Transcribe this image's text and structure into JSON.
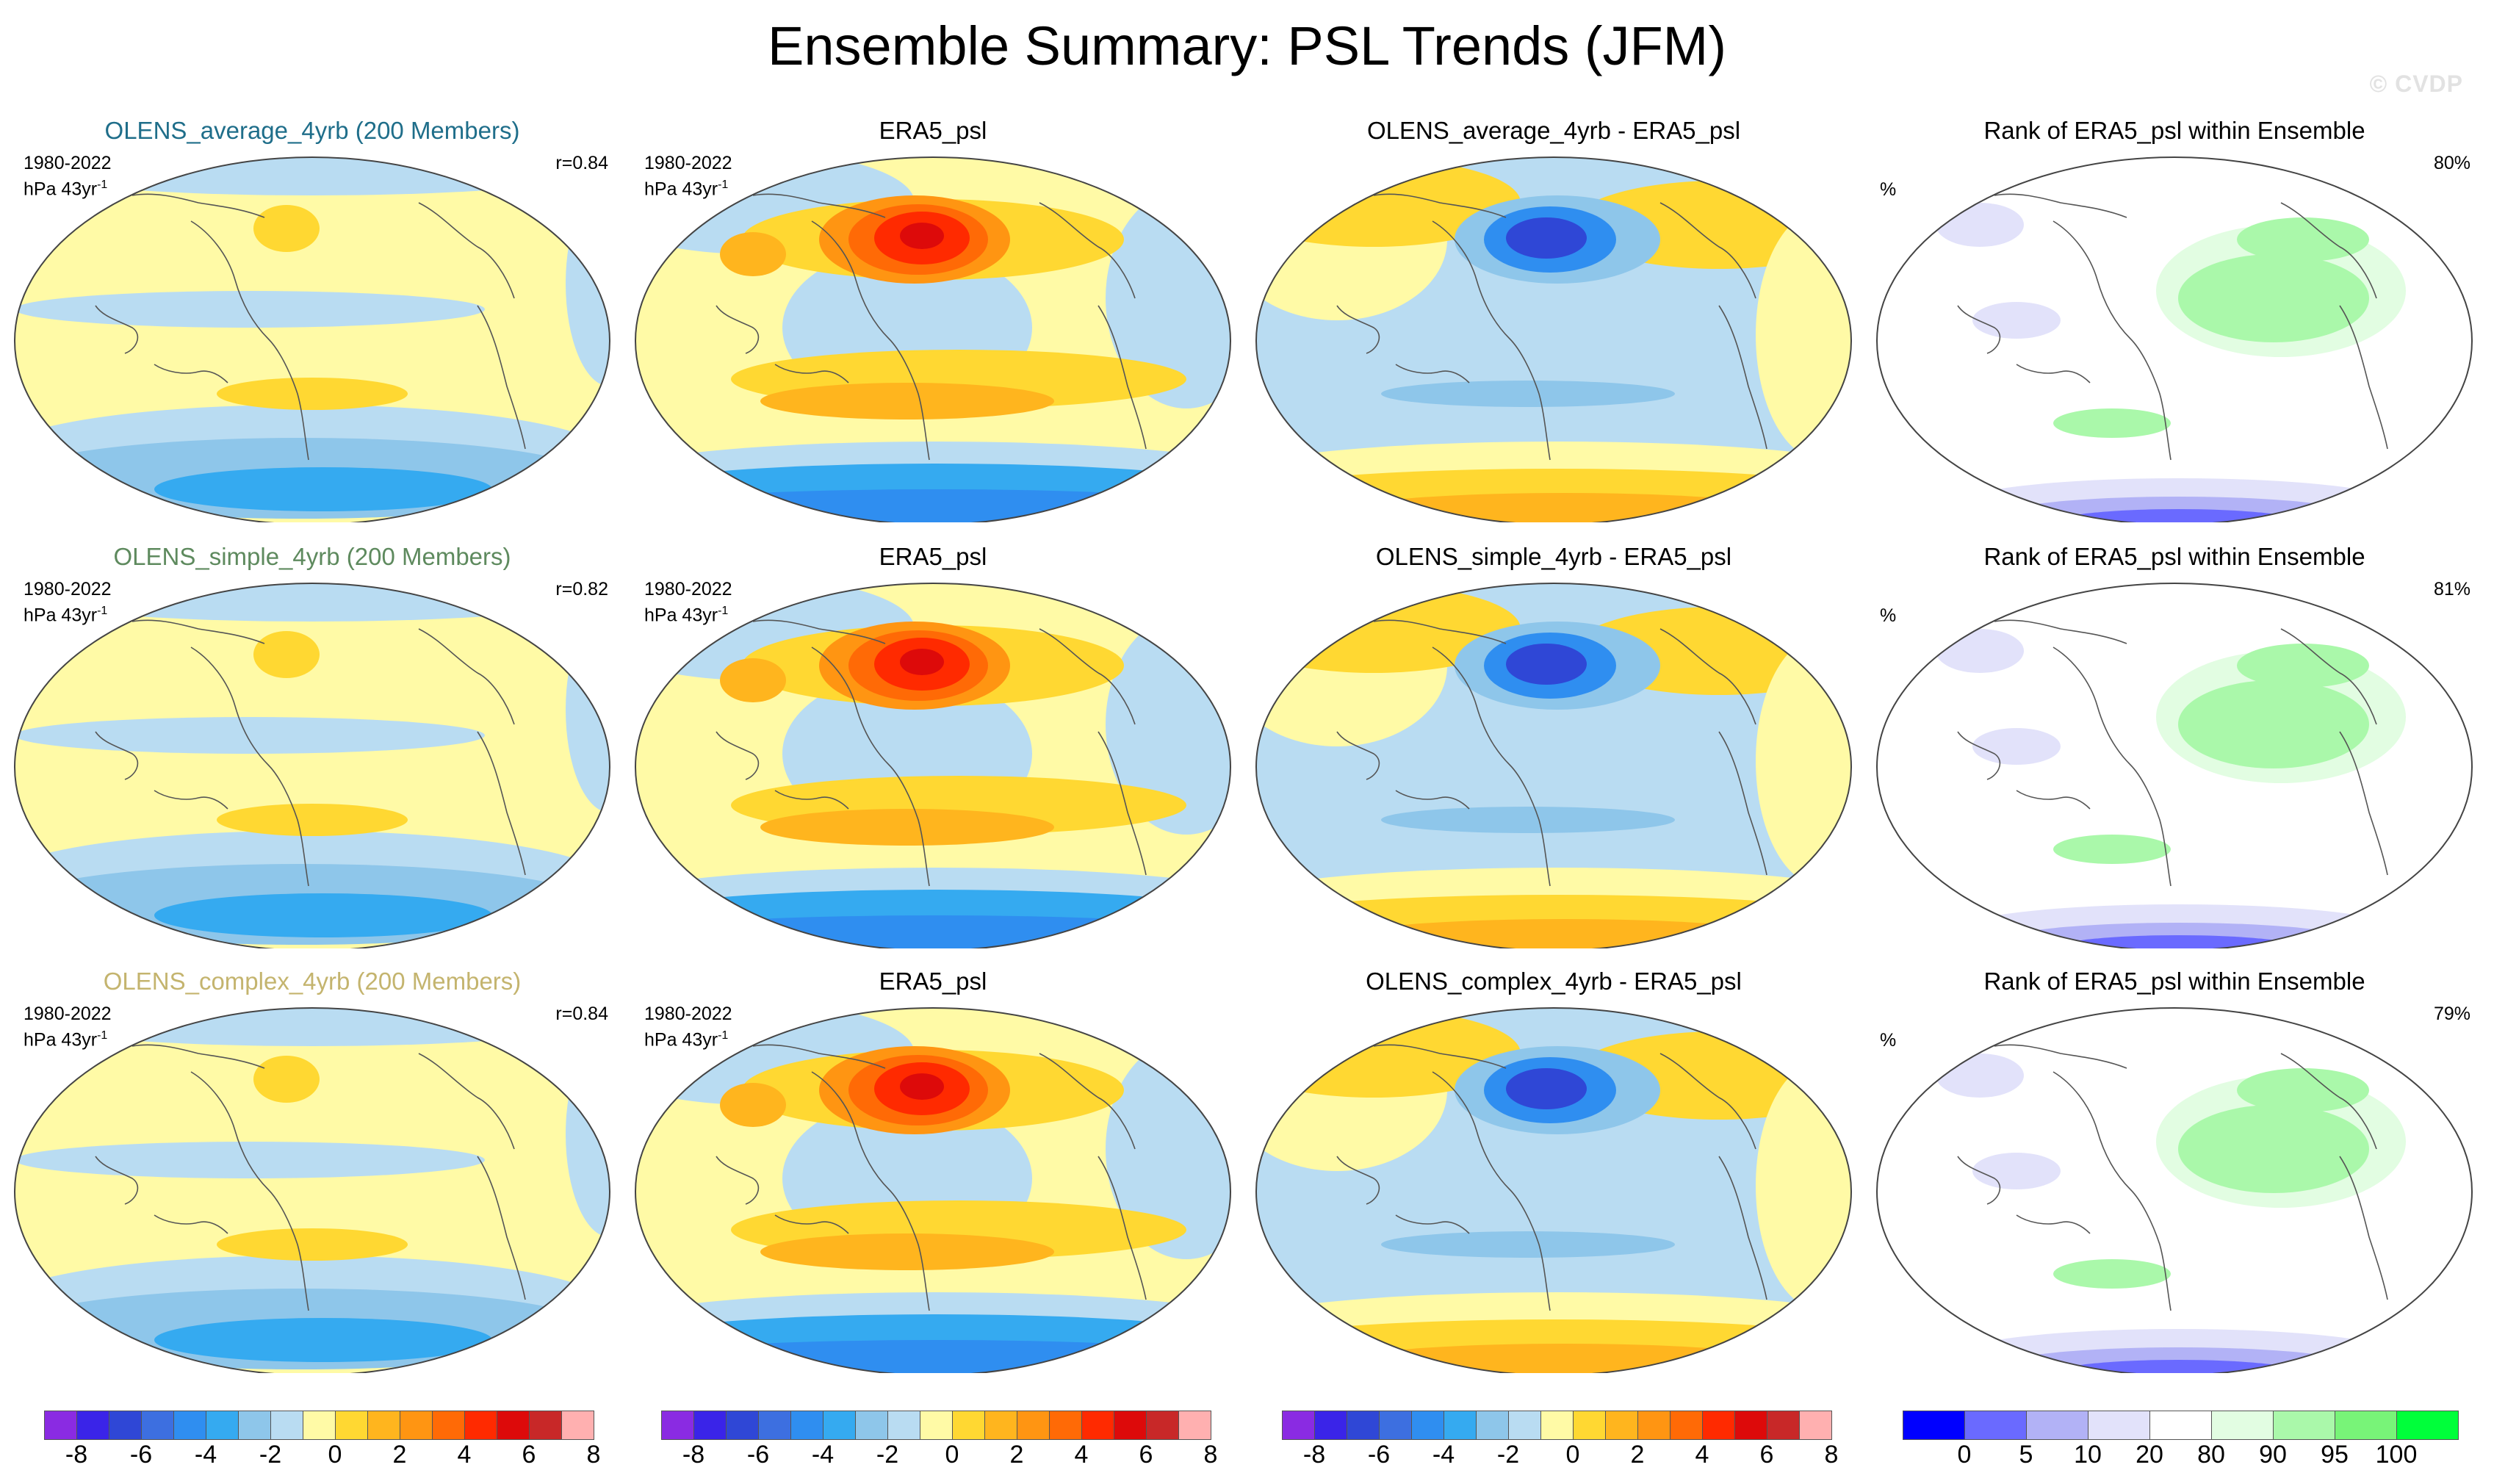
{
  "title": "Ensemble Summary: PSL Trends (JFM)",
  "watermark": "© CVDP",
  "period_label": "1980-2022",
  "units_base": "hPa 43yr",
  "units_exp": "-1",
  "rank_units": "%",
  "rows": [
    {
      "ens_title": "OLENS_average_4yrb (200 Members)",
      "r": "r=0.84",
      "obs_title": "ERA5_psl",
      "diff_title": "OLENS_average_4yrb - ERA5_psl",
      "rank_title": "Rank of ERA5_psl within Ensemble",
      "rank_pct": "80%"
    },
    {
      "ens_title": "OLENS_simple_4yrb (200 Members)",
      "r": "r=0.82",
      "obs_title": "ERA5_psl",
      "diff_title": "OLENS_simple_4yrb - ERA5_psl",
      "rank_title": "Rank of ERA5_psl within Ensemble",
      "rank_pct": "81%"
    },
    {
      "ens_title": "OLENS_complex_4yrb (200 Members)",
      "r": "r=0.84",
      "obs_title": "ERA5_psl",
      "diff_title": "OLENS_complex_4yrb - ERA5_psl",
      "rank_title": "Rank of ERA5_psl within Ensemble",
      "rank_pct": "79%"
    }
  ],
  "trend_colorbar": {
    "colors": [
      "#8a2be2",
      "#3a24e8",
      "#2f47d6",
      "#3d6fe0",
      "#2f8ef0",
      "#35aaf0",
      "#8ec6ea",
      "#b9dcf2",
      "#fffaa6",
      "#ffd832",
      "#ffb51e",
      "#ff9512",
      "#ff6a06",
      "#ff2a00",
      "#dd0a0a",
      "#c82828",
      "#ffb0b0"
    ],
    "ticks": [
      "-8",
      "-6",
      "-4",
      "-2",
      "0",
      "2",
      "4",
      "6",
      "8"
    ]
  },
  "rank_colorbar": {
    "colors": [
      "#0000ff",
      "#6a6aff",
      "#b2b2f6",
      "#e2e2fa",
      "#ffffff",
      "#e2fde2",
      "#aaf8aa",
      "#78f478",
      "#00ff3a"
    ],
    "ticks": [
      "0",
      "5",
      "10",
      "20",
      "80",
      "90",
      "95",
      "100"
    ]
  },
  "legend_icons": [
    "globe-map-icon"
  ]
}
